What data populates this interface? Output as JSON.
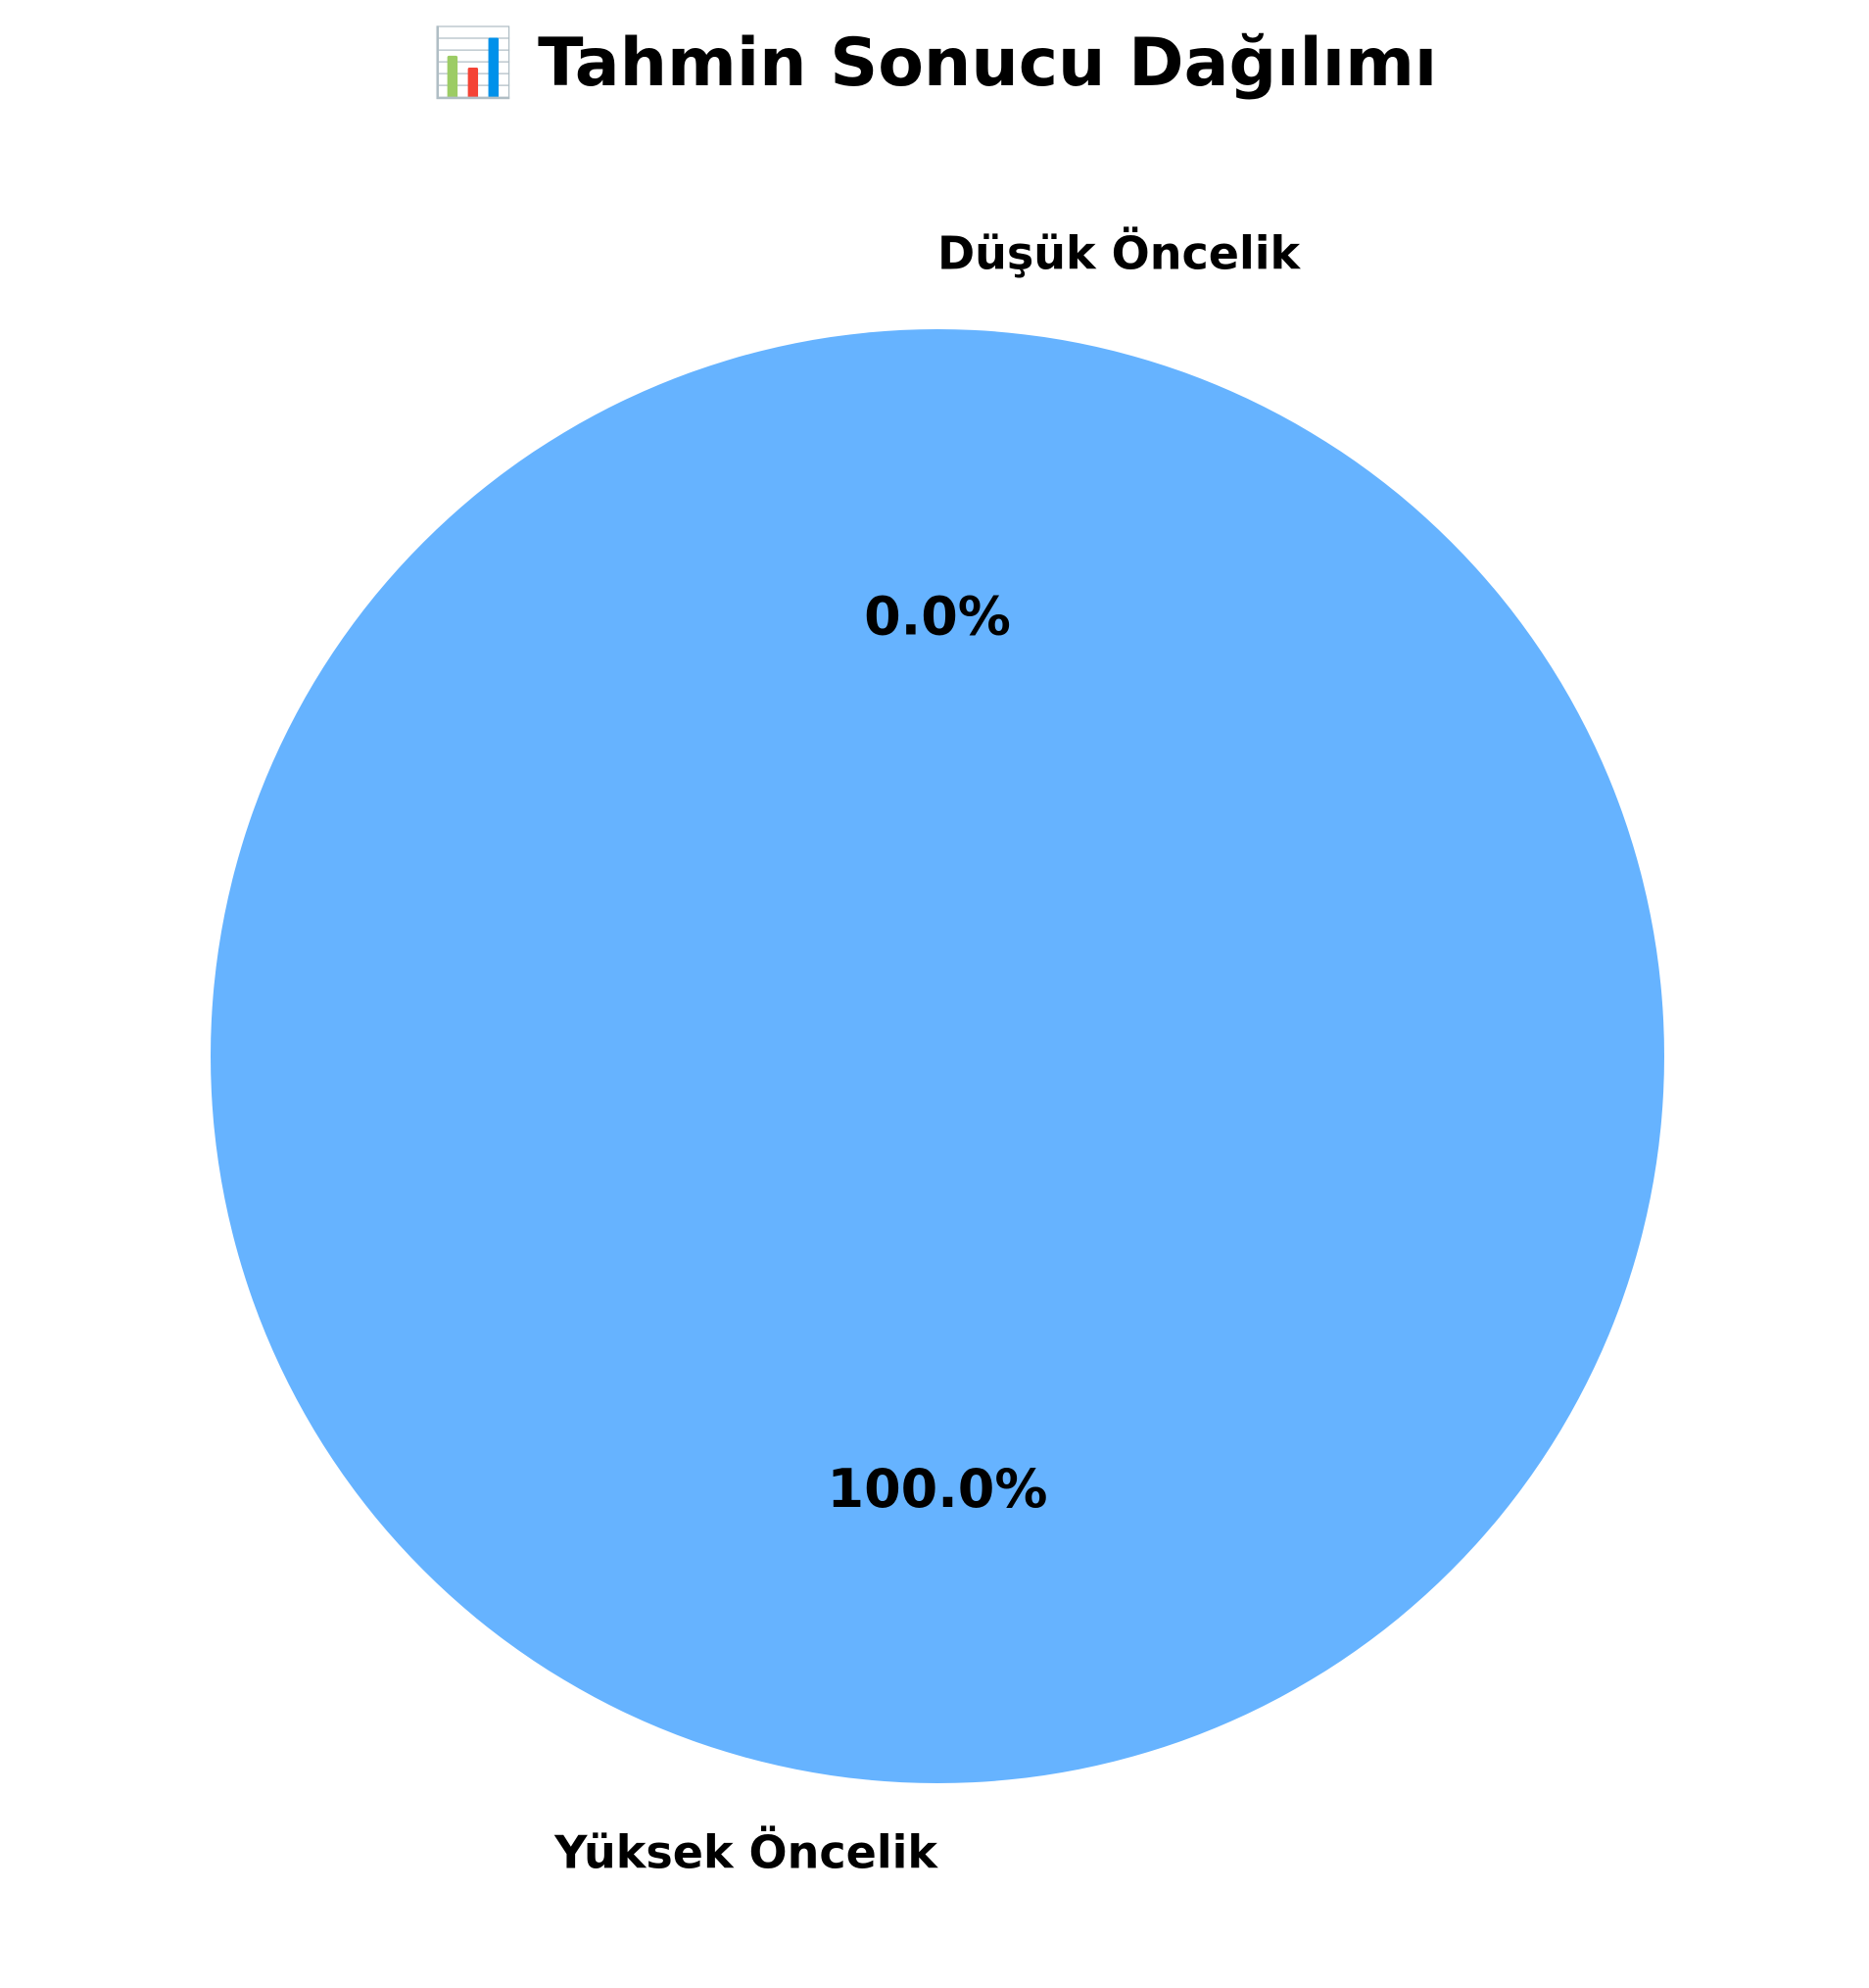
{
  "chart_data": {
    "type": "pie",
    "title": "📊 Tahmin Sonucu Dağılımı",
    "categories": [
      "Düşük Öncelik",
      "Yüksek Öncelik"
    ],
    "values": [
      0.0,
      100.0
    ],
    "percent_labels": [
      "0.0%",
      "100.0%"
    ],
    "colors": [
      "#ff9999",
      "#66b3ff"
    ]
  }
}
